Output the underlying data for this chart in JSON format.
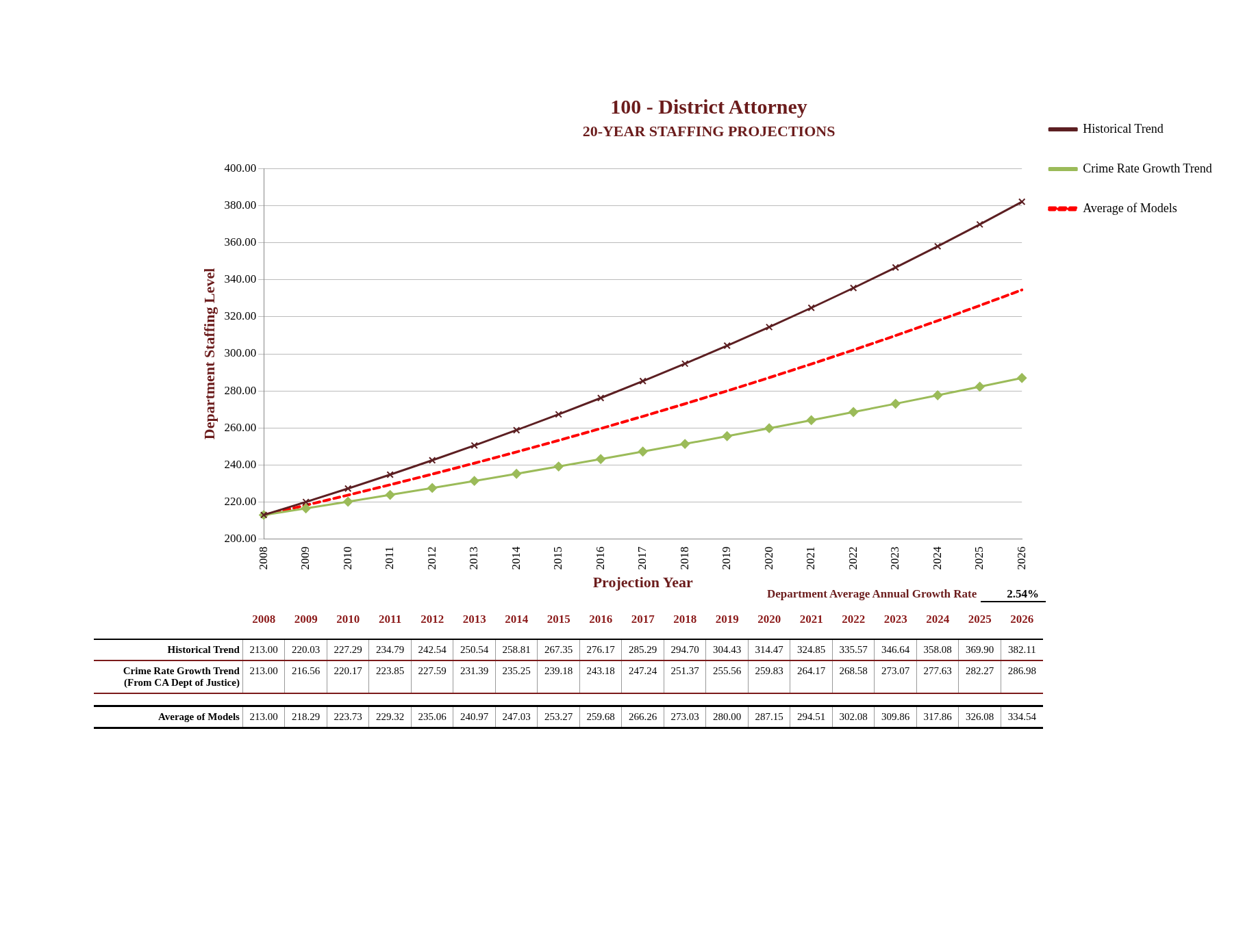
{
  "chart_data": {
    "type": "line",
    "title": "100 - District Attorney",
    "subtitle": "20-YEAR STAFFING PROJECTIONS",
    "xlabel": "Projection Year",
    "ylabel": "Department Staffing Level",
    "categories": [
      "2008",
      "2009",
      "2010",
      "2011",
      "2012",
      "2013",
      "2014",
      "2015",
      "2016",
      "2017",
      "2018",
      "2019",
      "2020",
      "2021",
      "2022",
      "2023",
      "2024",
      "2025",
      "2026"
    ],
    "series": [
      {
        "name": "Historical Trend",
        "color": "#5c1f22",
        "marker": "cross",
        "line_style": "solid",
        "values": [
          213.0,
          220.03,
          227.29,
          234.79,
          242.54,
          250.54,
          258.81,
          267.35,
          276.17,
          285.29,
          294.7,
          304.43,
          314.47,
          324.85,
          335.57,
          346.64,
          358.08,
          369.9,
          382.11
        ],
        "value_labels": [
          "213.00",
          "220.03",
          "227.29",
          "234.79",
          "242.54",
          "250.54",
          "258.81",
          "267.35",
          "276.17",
          "285.29",
          "294.70",
          "304.43",
          "314.47",
          "324.85",
          "335.57",
          "346.64",
          "358.08",
          "369.90",
          "382.11"
        ]
      },
      {
        "name": "Crime Rate Growth Trend",
        "color": "#9bbb59",
        "marker": "diamond",
        "line_style": "solid",
        "values": [
          213.0,
          216.56,
          220.17,
          223.85,
          227.59,
          231.39,
          235.25,
          239.18,
          243.18,
          247.24,
          251.37,
          255.56,
          259.83,
          264.17,
          268.58,
          273.07,
          277.63,
          282.27,
          286.98
        ],
        "value_labels": [
          "213.00",
          "216.56",
          "220.17",
          "223.85",
          "227.59",
          "231.39",
          "235.25",
          "239.18",
          "243.18",
          "247.24",
          "251.37",
          "255.56",
          "259.83",
          "264.17",
          "268.58",
          "273.07",
          "277.63",
          "282.27",
          "286.98"
        ]
      },
      {
        "name": "Average of Models",
        "color": "#ff0000",
        "marker": "none",
        "line_style": "dashed",
        "values": [
          213.0,
          218.29,
          223.73,
          229.32,
          235.06,
          240.97,
          247.03,
          253.27,
          259.68,
          266.26,
          273.03,
          280.0,
          287.15,
          294.51,
          302.08,
          309.86,
          317.86,
          326.08,
          334.54
        ],
        "value_labels": [
          "213.00",
          "218.29",
          "223.73",
          "229.32",
          "235.06",
          "240.97",
          "247.03",
          "253.27",
          "259.68",
          "266.26",
          "273.03",
          "280.00",
          "287.15",
          "294.51",
          "302.08",
          "309.86",
          "317.86",
          "326.08",
          "334.54"
        ]
      }
    ],
    "ylim": [
      200,
      400
    ],
    "yticks": [
      {
        "value": 200,
        "label": "200.00"
      },
      {
        "value": 220,
        "label": "220.00"
      },
      {
        "value": 240,
        "label": "240.00"
      },
      {
        "value": 260,
        "label": "260.00"
      },
      {
        "value": 280,
        "label": "280.00"
      },
      {
        "value": 300,
        "label": "300.00"
      },
      {
        "value": 320,
        "label": "320.00"
      },
      {
        "value": 340,
        "label": "340.00"
      },
      {
        "value": 360,
        "label": "360.00"
      },
      {
        "value": 380,
        "label": "380.00"
      },
      {
        "value": 400,
        "label": "400.00"
      }
    ],
    "grid": "y",
    "legend": "right",
    "annotations": [
      "Department Average Annual Growth Rate",
      "2.54%",
      "(From CA Dept of Justice)"
    ]
  }
}
